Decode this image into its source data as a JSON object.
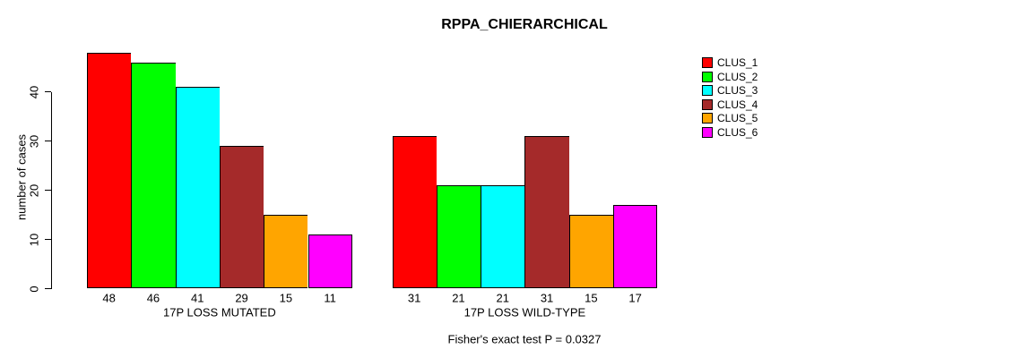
{
  "title": "RPPA_CHIERARCHICAL",
  "caption": "Fisher's exact test P = 0.0327",
  "axis_color": "#000000",
  "background_color": "#ffffff",
  "chart_data": {
    "type": "bar",
    "title": "RPPA_CHIERARCHICAL",
    "xlabel": "",
    "ylabel": "number of cases",
    "ylim": [
      0,
      48
    ],
    "yticks": [
      0,
      10,
      20,
      30,
      40
    ],
    "grid": false,
    "legend_position": "top-right",
    "bar_value_labels": true,
    "categories": [
      "17P LOSS MUTATED",
      "17P LOSS WILD-TYPE"
    ],
    "series": [
      {
        "name": "CLUS_1",
        "color": "#FF0000",
        "values": [
          48,
          31
        ]
      },
      {
        "name": "CLUS_2",
        "color": "#00FF00",
        "values": [
          46,
          21
        ]
      },
      {
        "name": "CLUS_3",
        "color": "#00FFFF",
        "values": [
          41,
          21
        ]
      },
      {
        "name": "CLUS_4",
        "color": "#A52A2A",
        "values": [
          29,
          31
        ]
      },
      {
        "name": "CLUS_5",
        "color": "#FFA500",
        "values": [
          15,
          15
        ]
      },
      {
        "name": "CLUS_6",
        "color": "#FF00FF",
        "values": [
          11,
          17
        ]
      }
    ],
    "annotation": "Fisher's exact test P = 0.0327"
  }
}
